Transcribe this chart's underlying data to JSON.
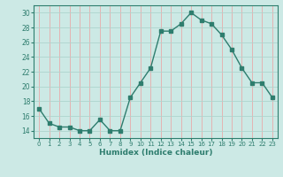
{
  "x": [
    0,
    1,
    2,
    3,
    4,
    5,
    6,
    7,
    8,
    9,
    10,
    11,
    12,
    13,
    14,
    15,
    16,
    17,
    18,
    19,
    20,
    21,
    22,
    23
  ],
  "y": [
    17,
    15,
    14.5,
    14.5,
    14,
    14,
    15.5,
    14,
    14,
    18.5,
    20.5,
    22.5,
    27.5,
    27.5,
    28.5,
    30,
    29,
    28.5,
    27,
    25,
    22.5,
    20.5,
    20.5,
    18.5
  ],
  "line_color": "#2e7d6e",
  "marker": "s",
  "marker_size": 2.5,
  "bg_color": "#cce9e5",
  "vgrid_color": "#e8aaaa",
  "hgrid_color": "#aed4ce",
  "xlabel": "Humidex (Indice chaleur)",
  "xlim": [
    -0.5,
    23.5
  ],
  "ylim": [
    13,
    31
  ],
  "yticks": [
    14,
    16,
    18,
    20,
    22,
    24,
    26,
    28,
    30
  ],
  "xticks": [
    0,
    1,
    2,
    3,
    4,
    5,
    6,
    7,
    8,
    9,
    10,
    11,
    12,
    13,
    14,
    15,
    16,
    17,
    18,
    19,
    20,
    21,
    22,
    23
  ]
}
